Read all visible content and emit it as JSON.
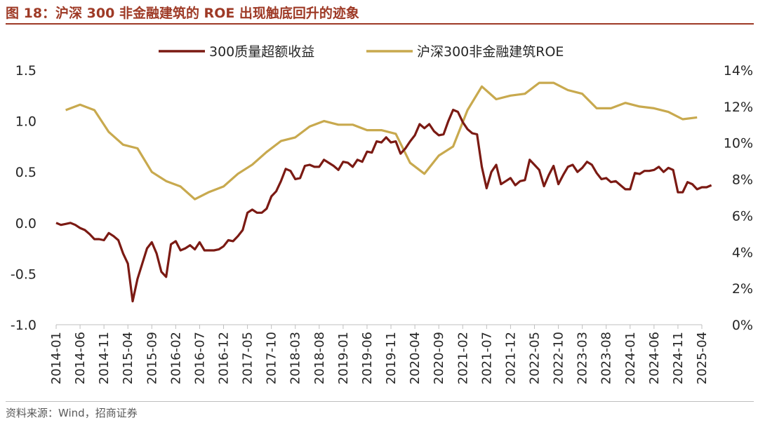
{
  "figure": {
    "title": "图 18：沪深 300 非金融建筑的 ROE 出现触底回升的迹象",
    "source": "资料来源：Wind，招商证券"
  },
  "colors": {
    "excess": "#7B1A13",
    "roe": "#C8A94E",
    "axis": "#BFBFBF",
    "accent": "#9E3A26"
  },
  "chart_data": {
    "type": "line",
    "x_ticks": [
      "2014-01",
      "2014-06",
      "2014-11",
      "2015-04",
      "2015-09",
      "2016-02",
      "2016-07",
      "2016-12",
      "2017-05",
      "2017-10",
      "2018-03",
      "2018-08",
      "2019-01",
      "2019-06",
      "2019-11",
      "2020-04",
      "2020-09",
      "2021-02",
      "2021-07",
      "2021-12",
      "2022-05",
      "2022-10",
      "2023-03",
      "2023-08",
      "2024-01",
      "2024-06",
      "2024-11",
      "2025-04"
    ],
    "legend_position": "top-center",
    "y_left": {
      "range": [
        -1.0,
        1.5
      ],
      "ticks": [
        "-1.0",
        "-0.5",
        "0.0",
        "0.5",
        "1.0",
        "1.5"
      ]
    },
    "y_right": {
      "range": [
        0,
        14
      ],
      "ticks": [
        "0%",
        "2%",
        "4%",
        "6%",
        "8%",
        "10%",
        "12%",
        "14%"
      ]
    },
    "series": [
      {
        "name": "300质量超额收益",
        "axis": "left",
        "start": "2014-01",
        "values": [
          0.0,
          -0.02,
          -0.01,
          0.0,
          -0.02,
          -0.05,
          -0.07,
          -0.11,
          -0.16,
          -0.16,
          -0.17,
          -0.1,
          -0.13,
          -0.17,
          -0.3,
          -0.4,
          -0.77,
          -0.55,
          -0.4,
          -0.25,
          -0.19,
          -0.3,
          -0.48,
          -0.53,
          -0.21,
          -0.18,
          -0.27,
          -0.25,
          -0.22,
          -0.26,
          -0.19,
          -0.27,
          -0.27,
          -0.27,
          -0.26,
          -0.23,
          -0.17,
          -0.18,
          -0.13,
          -0.07,
          0.1,
          0.13,
          0.1,
          0.1,
          0.14,
          0.26,
          0.31,
          0.41,
          0.53,
          0.51,
          0.43,
          0.44,
          0.56,
          0.57,
          0.55,
          0.55,
          0.62,
          0.59,
          0.56,
          0.52,
          0.6,
          0.59,
          0.55,
          0.62,
          0.6,
          0.7,
          0.69,
          0.8,
          0.79,
          0.84,
          0.79,
          0.8,
          0.68,
          0.73,
          0.8,
          0.86,
          0.97,
          0.93,
          0.97,
          0.9,
          0.86,
          0.87,
          1.0,
          1.11,
          1.09,
          0.99,
          0.92,
          0.88,
          0.87,
          0.55,
          0.34,
          0.5,
          0.57,
          0.38,
          0.41,
          0.44,
          0.37,
          0.41,
          0.42,
          0.62,
          0.57,
          0.52,
          0.36,
          0.47,
          0.56,
          0.38,
          0.47,
          0.55,
          0.57,
          0.5,
          0.54,
          0.6,
          0.57,
          0.49,
          0.43,
          0.44,
          0.4,
          0.41,
          0.37,
          0.33,
          0.33,
          0.49,
          0.48,
          0.51,
          0.51,
          0.52,
          0.55,
          0.5,
          0.54,
          0.52,
          0.3,
          0.3,
          0.4,
          0.38,
          0.33,
          0.35,
          0.35,
          0.37
        ]
      },
      {
        "name": "沪深300非金融建筑ROE",
        "axis": "right",
        "points": [
          [
            "2014-03",
            11.8
          ],
          [
            "2014-06",
            12.1
          ],
          [
            "2014-09",
            11.8
          ],
          [
            "2014-12",
            10.6
          ],
          [
            "2015-03",
            9.9
          ],
          [
            "2015-06",
            9.7
          ],
          [
            "2015-09",
            8.4
          ],
          [
            "2015-12",
            7.9
          ],
          [
            "2016-03",
            7.6
          ],
          [
            "2016-06",
            6.9
          ],
          [
            "2016-09",
            7.3
          ],
          [
            "2016-12",
            7.6
          ],
          [
            "2017-03",
            8.3
          ],
          [
            "2017-06",
            8.8
          ],
          [
            "2017-09",
            9.5
          ],
          [
            "2017-12",
            10.1
          ],
          [
            "2018-03",
            10.3
          ],
          [
            "2018-06",
            10.9
          ],
          [
            "2018-09",
            11.2
          ],
          [
            "2018-12",
            11.0
          ],
          [
            "2019-03",
            11.0
          ],
          [
            "2019-06",
            10.7
          ],
          [
            "2019-09",
            10.7
          ],
          [
            "2019-12",
            10.5
          ],
          [
            "2020-03",
            8.9
          ],
          [
            "2020-06",
            8.3
          ],
          [
            "2020-09",
            9.3
          ],
          [
            "2020-12",
            9.8
          ],
          [
            "2021-03",
            11.8
          ],
          [
            "2021-06",
            13.1
          ],
          [
            "2021-09",
            12.4
          ],
          [
            "2021-12",
            12.6
          ],
          [
            "2022-03",
            12.7
          ],
          [
            "2022-06",
            13.3
          ],
          [
            "2022-09",
            13.3
          ],
          [
            "2022-12",
            12.9
          ],
          [
            "2023-03",
            12.7
          ],
          [
            "2023-06",
            11.9
          ],
          [
            "2023-09",
            11.9
          ],
          [
            "2023-12",
            12.2
          ],
          [
            "2024-03",
            12.0
          ],
          [
            "2024-06",
            11.9
          ],
          [
            "2024-09",
            11.7
          ],
          [
            "2024-12",
            11.3
          ],
          [
            "2025-03",
            11.4
          ]
        ]
      }
    ]
  }
}
